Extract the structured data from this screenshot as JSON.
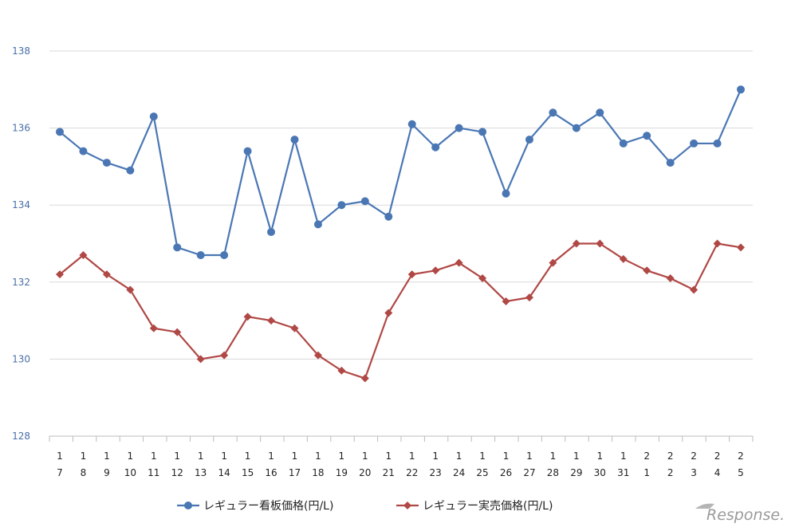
{
  "chart_data": {
    "type": "line",
    "title": "",
    "xlabel": "",
    "ylabel": "",
    "ylim": [
      128,
      138
    ],
    "yticks": [
      128,
      130,
      132,
      134,
      136,
      138
    ],
    "grid": true,
    "legend_position": "bottom",
    "x_month_labels": [
      "1",
      "1",
      "1",
      "1",
      "1",
      "1",
      "1",
      "1",
      "1",
      "1",
      "1",
      "1",
      "1",
      "1",
      "1",
      "1",
      "1",
      "1",
      "1",
      "1",
      "1",
      "1",
      "1",
      "1",
      "1",
      "2",
      "2",
      "2",
      "2",
      "2"
    ],
    "x_day_labels": [
      "7",
      "8",
      "9",
      "10",
      "11",
      "12",
      "13",
      "14",
      "15",
      "16",
      "17",
      "18",
      "19",
      "20",
      "21",
      "22",
      "23",
      "24",
      "25",
      "26",
      "27",
      "28",
      "29",
      "30",
      "31",
      "1",
      "2",
      "3",
      "4",
      "5"
    ],
    "series": [
      {
        "name": "レギュラー看板価格(円/L)",
        "color": "#4a77b4",
        "marker": "circle",
        "values": [
          135.9,
          135.4,
          135.1,
          134.9,
          136.3,
          132.9,
          132.7,
          132.7,
          135.4,
          133.3,
          135.7,
          133.5,
          134.0,
          134.1,
          133.7,
          136.1,
          135.5,
          136.0,
          135.9,
          134.3,
          135.7,
          136.4,
          136.0,
          136.4,
          135.6,
          135.8,
          135.1,
          135.6,
          135.6,
          137.0
        ]
      },
      {
        "name": "レギュラー実売価格(円/L)",
        "color": "#b04845",
        "marker": "diamond",
        "values": [
          132.2,
          132.7,
          132.2,
          131.8,
          130.8,
          130.7,
          130.0,
          130.1,
          131.1,
          131.0,
          130.8,
          130.1,
          129.7,
          129.5,
          131.2,
          132.2,
          132.3,
          132.5,
          132.1,
          131.5,
          131.6,
          132.5,
          133.0,
          133.0,
          132.6,
          132.3,
          132.1,
          131.8,
          133.0,
          132.9
        ]
      }
    ]
  },
  "watermark": "Response."
}
